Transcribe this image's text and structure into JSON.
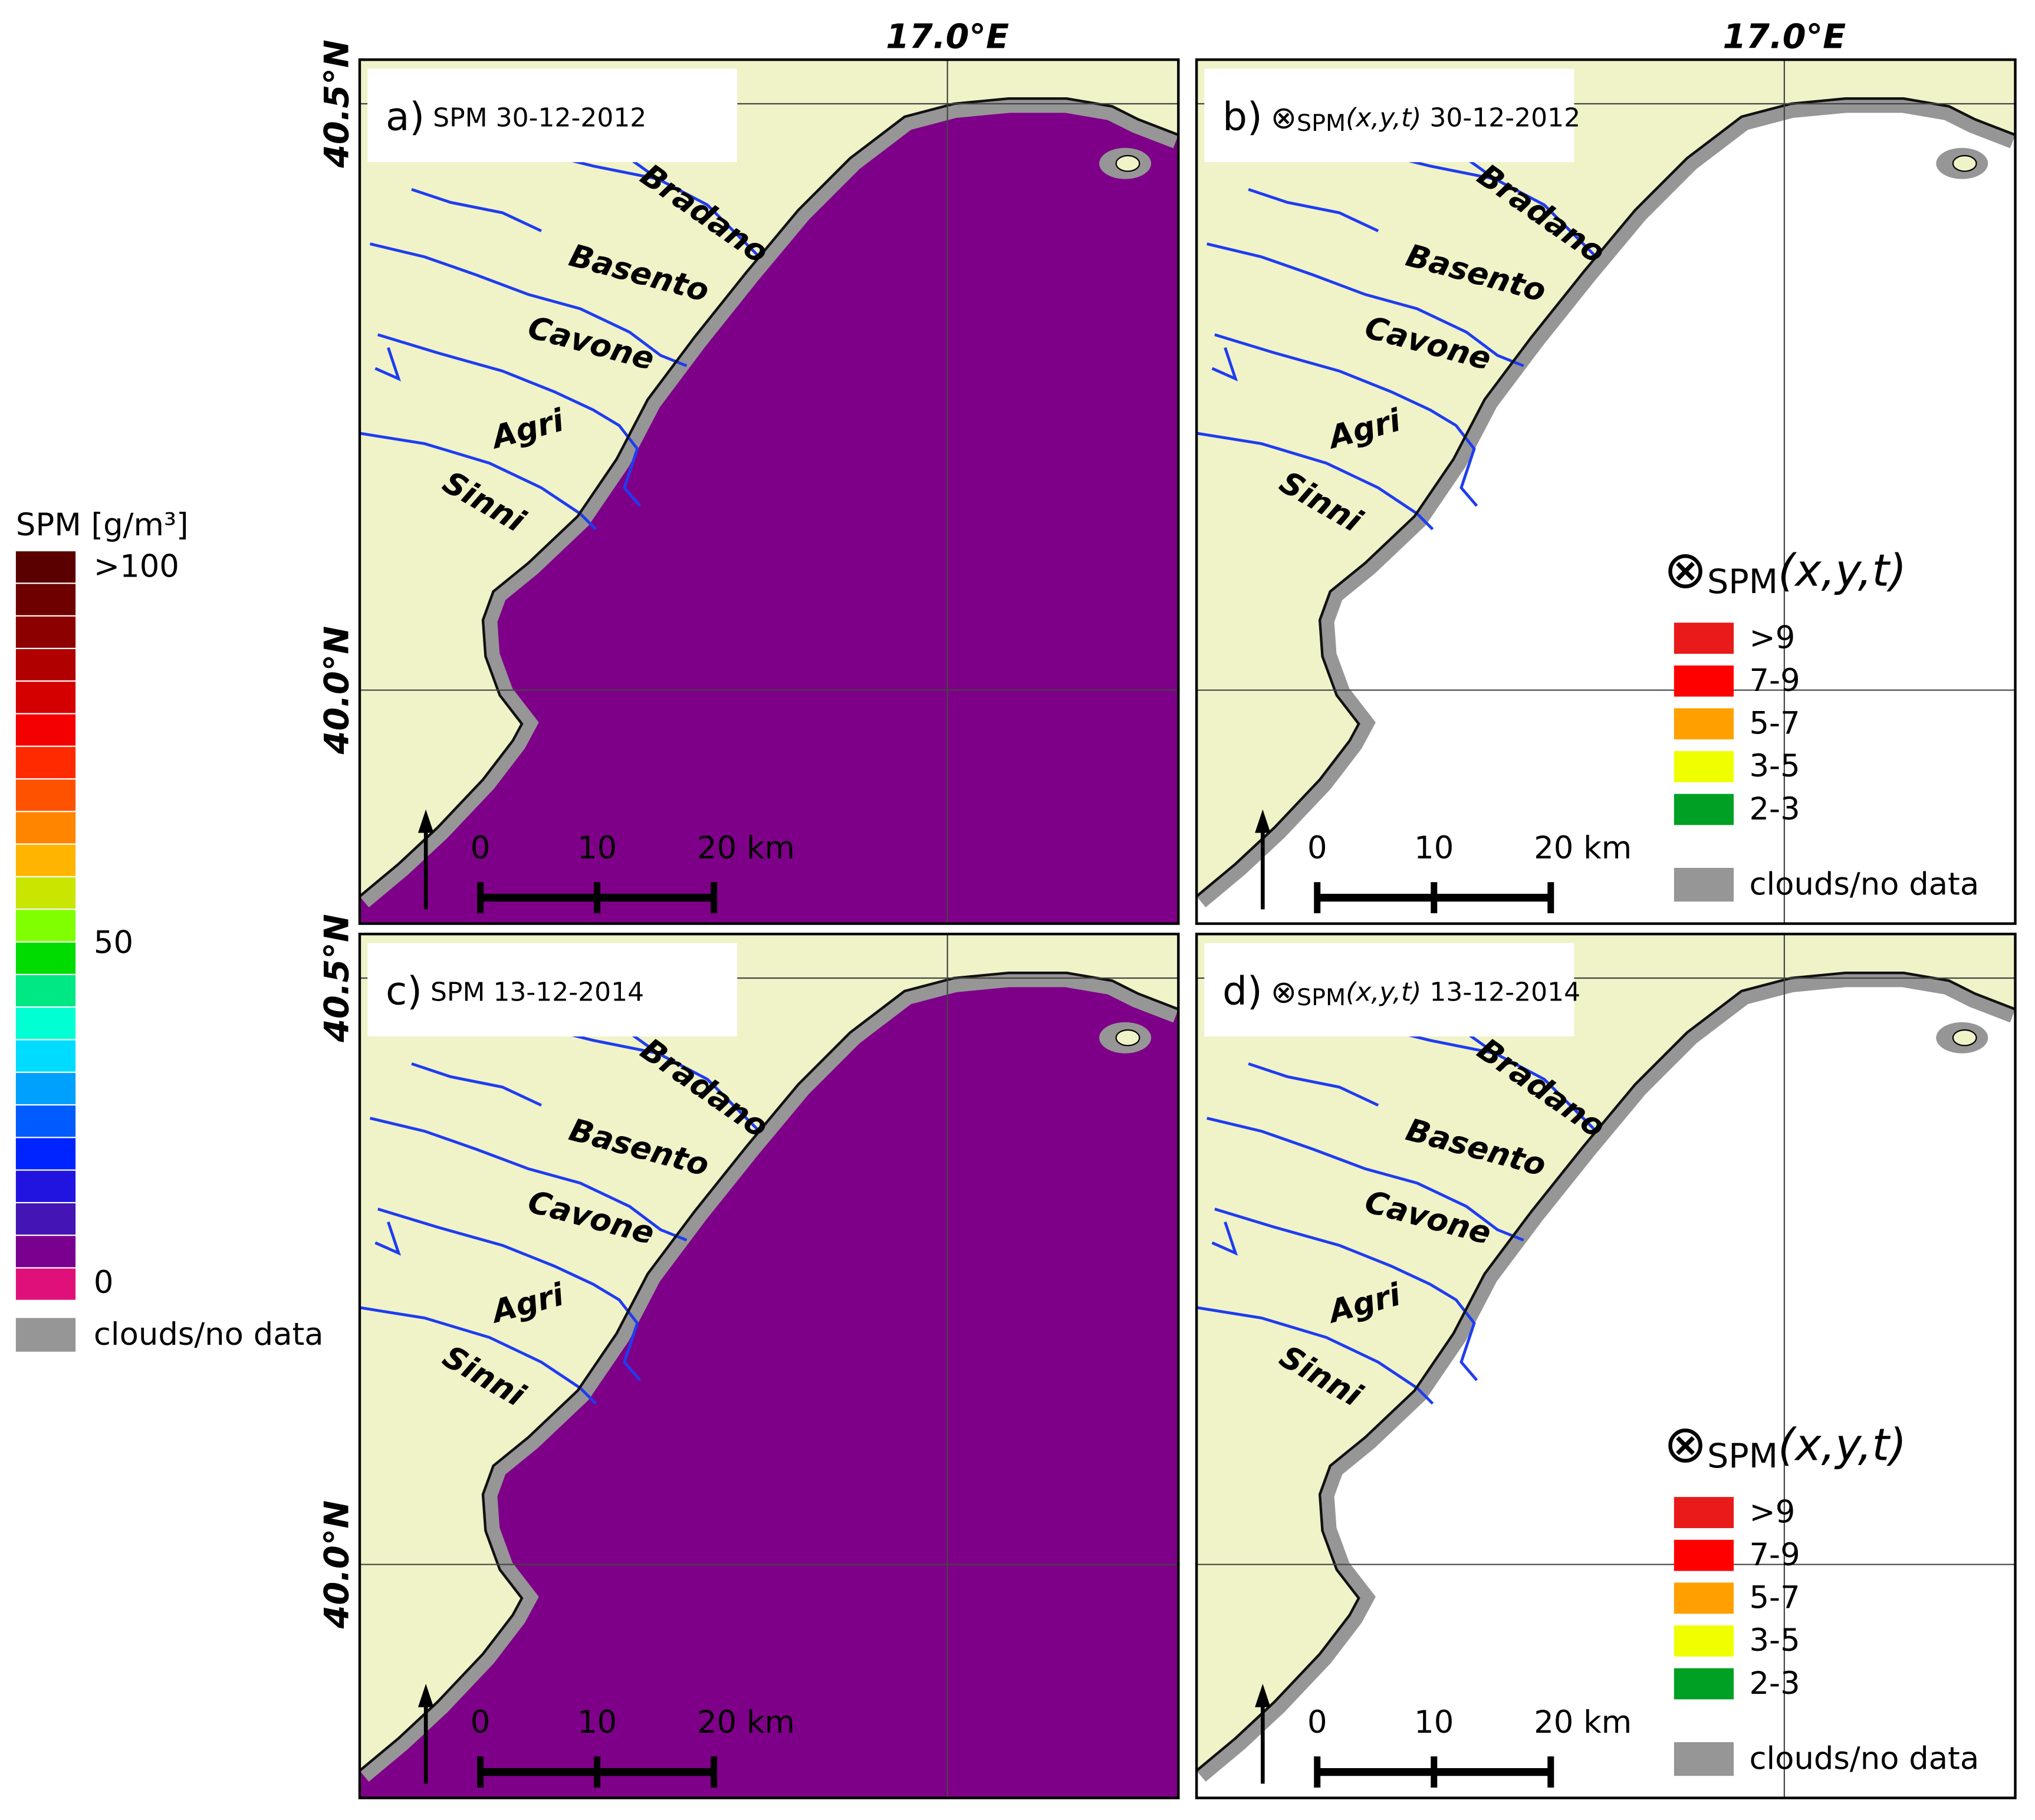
{
  "colorbar": {
    "title": "SPM [g/m³]",
    "colors": [
      "#5a0000",
      "#6e0000",
      "#8c0000",
      "#b00000",
      "#d40000",
      "#f40000",
      "#ff2a00",
      "#ff5200",
      "#ff8400",
      "#ffb400",
      "#c8e600",
      "#80ff00",
      "#00dc00",
      "#00e884",
      "#00ffd2",
      "#00dcff",
      "#00a0ff",
      "#005cff",
      "#0024ff",
      "#2214e0",
      "#4414b4",
      "#7a0090",
      "#e0107a"
    ],
    "top_label": ">100",
    "mid_label": "50",
    "bottom_label": "0",
    "nodata_color": "#969696",
    "nodata_label": "clouds/no data"
  },
  "panels": [
    {
      "letter": "a)",
      "name": "SPM",
      "date": "30-12-2012",
      "lon_label": "17.0°E",
      "lat_labels": [
        "40.5°N",
        "40.0°N"
      ],
      "rivers": [
        "Bradano",
        "Basento",
        "Cavone",
        "Agri",
        "Sinni"
      ],
      "scale": [
        "0",
        "10",
        "20 km"
      ]
    },
    {
      "letter": "b)",
      "symbol": "⊗",
      "sub": "SPM",
      "args": "(x,y,t)",
      "date": "30-12-2012",
      "lon_label": "17.0°E",
      "rivers": [
        "Bradano",
        "Basento",
        "Cavone",
        "Agri",
        "Sinni"
      ],
      "scale": [
        "0",
        "10",
        "20 km"
      ],
      "legend": {
        "symbol": "⊗",
        "sub": "SPM",
        "args": "(x,y,t)",
        "items": [
          {
            "label": ">9",
            "color": "#e81a1a"
          },
          {
            "label": "7-9",
            "color": "#ff0000"
          },
          {
            "label": "5-7",
            "color": "#ffa000"
          },
          {
            "label": "3-5",
            "color": "#f0ff00"
          },
          {
            "label": "2-3",
            "color": "#00a024"
          }
        ],
        "nodata_color": "#969696",
        "nodata_label": "clouds/no data"
      }
    },
    {
      "letter": "c)",
      "name": "SPM",
      "date": "13-12-2014",
      "lat_labels": [
        "40.5°N",
        "40.0°N"
      ],
      "rivers": [
        "Bradano",
        "Basento",
        "Cavone",
        "Agri",
        "Sinni"
      ],
      "scale": [
        "0",
        "10",
        "20 km"
      ]
    },
    {
      "letter": "d)",
      "symbol": "⊗",
      "sub": "SPM",
      "args": "(x,y,t)",
      "date": "13-12-2014",
      "rivers": [
        "Bradano",
        "Basento",
        "Cavone",
        "Agri",
        "Sinni"
      ],
      "scale": [
        "0",
        "10",
        "20 km"
      ],
      "legend": {
        "symbol": "⊗",
        "sub": "SPM",
        "args": "(x,y,t)",
        "items": [
          {
            "label": ">9",
            "color": "#e81a1a"
          },
          {
            "label": "7-9",
            "color": "#ff0000"
          },
          {
            "label": "5-7",
            "color": "#ffa000"
          },
          {
            "label": "3-5",
            "color": "#f0ff00"
          },
          {
            "label": "2-3",
            "color": "#00a024"
          }
        ],
        "nodata_color": "#969696",
        "nodata_label": "clouds/no data"
      }
    }
  ]
}
